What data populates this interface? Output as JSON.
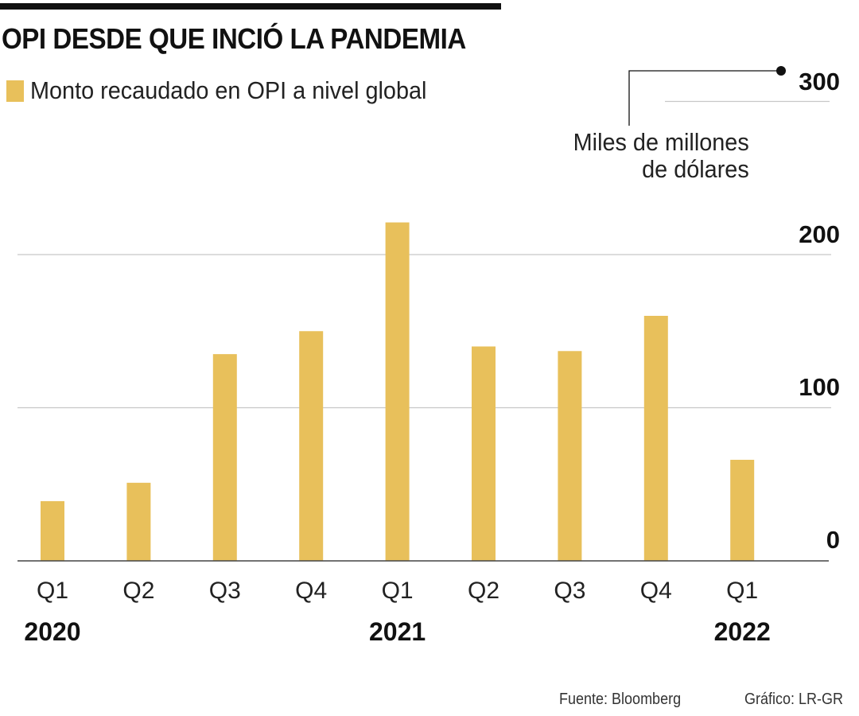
{
  "header": {
    "title": "OPI DESDE QUE INCIÓ LA PANDEMIA",
    "legend_label": "Monto recaudado en OPI a nivel global"
  },
  "unit_label": [
    "Miles de millones",
    "de dólares"
  ],
  "footer": {
    "source": "Fuente: Bloomberg",
    "credit": "Gráfico: LR-GR"
  },
  "colors": {
    "bar": "#e8c05b",
    "grid": "#c8c8c8",
    "axis": "#444444",
    "text": "#111111"
  },
  "chart_data": {
    "type": "bar",
    "title": "OPI DESDE QUE INCIÓ LA PANDEMIA",
    "xlabel": "",
    "ylabel": "Miles de millones de dólares",
    "categories": [
      "Q1",
      "Q2",
      "Q3",
      "Q4",
      "Q1",
      "Q2",
      "Q3",
      "Q4",
      "Q1"
    ],
    "years": [
      {
        "label": "2020",
        "index": 0
      },
      {
        "label": "2021",
        "index": 4
      },
      {
        "label": "2022",
        "index": 8
      }
    ],
    "series": [
      {
        "name": "Monto recaudado en OPI a nivel global",
        "values": [
          39,
          51,
          135,
          150,
          221,
          140,
          137,
          160,
          66
        ]
      }
    ],
    "ylim": [
      0,
      300
    ],
    "yticks": [
      0,
      100,
      200,
      300
    ],
    "ytick_labels": [
      "0",
      "100",
      "200",
      "300"
    ],
    "grid": true,
    "legend": "top-left",
    "y_axis_side": "right"
  }
}
